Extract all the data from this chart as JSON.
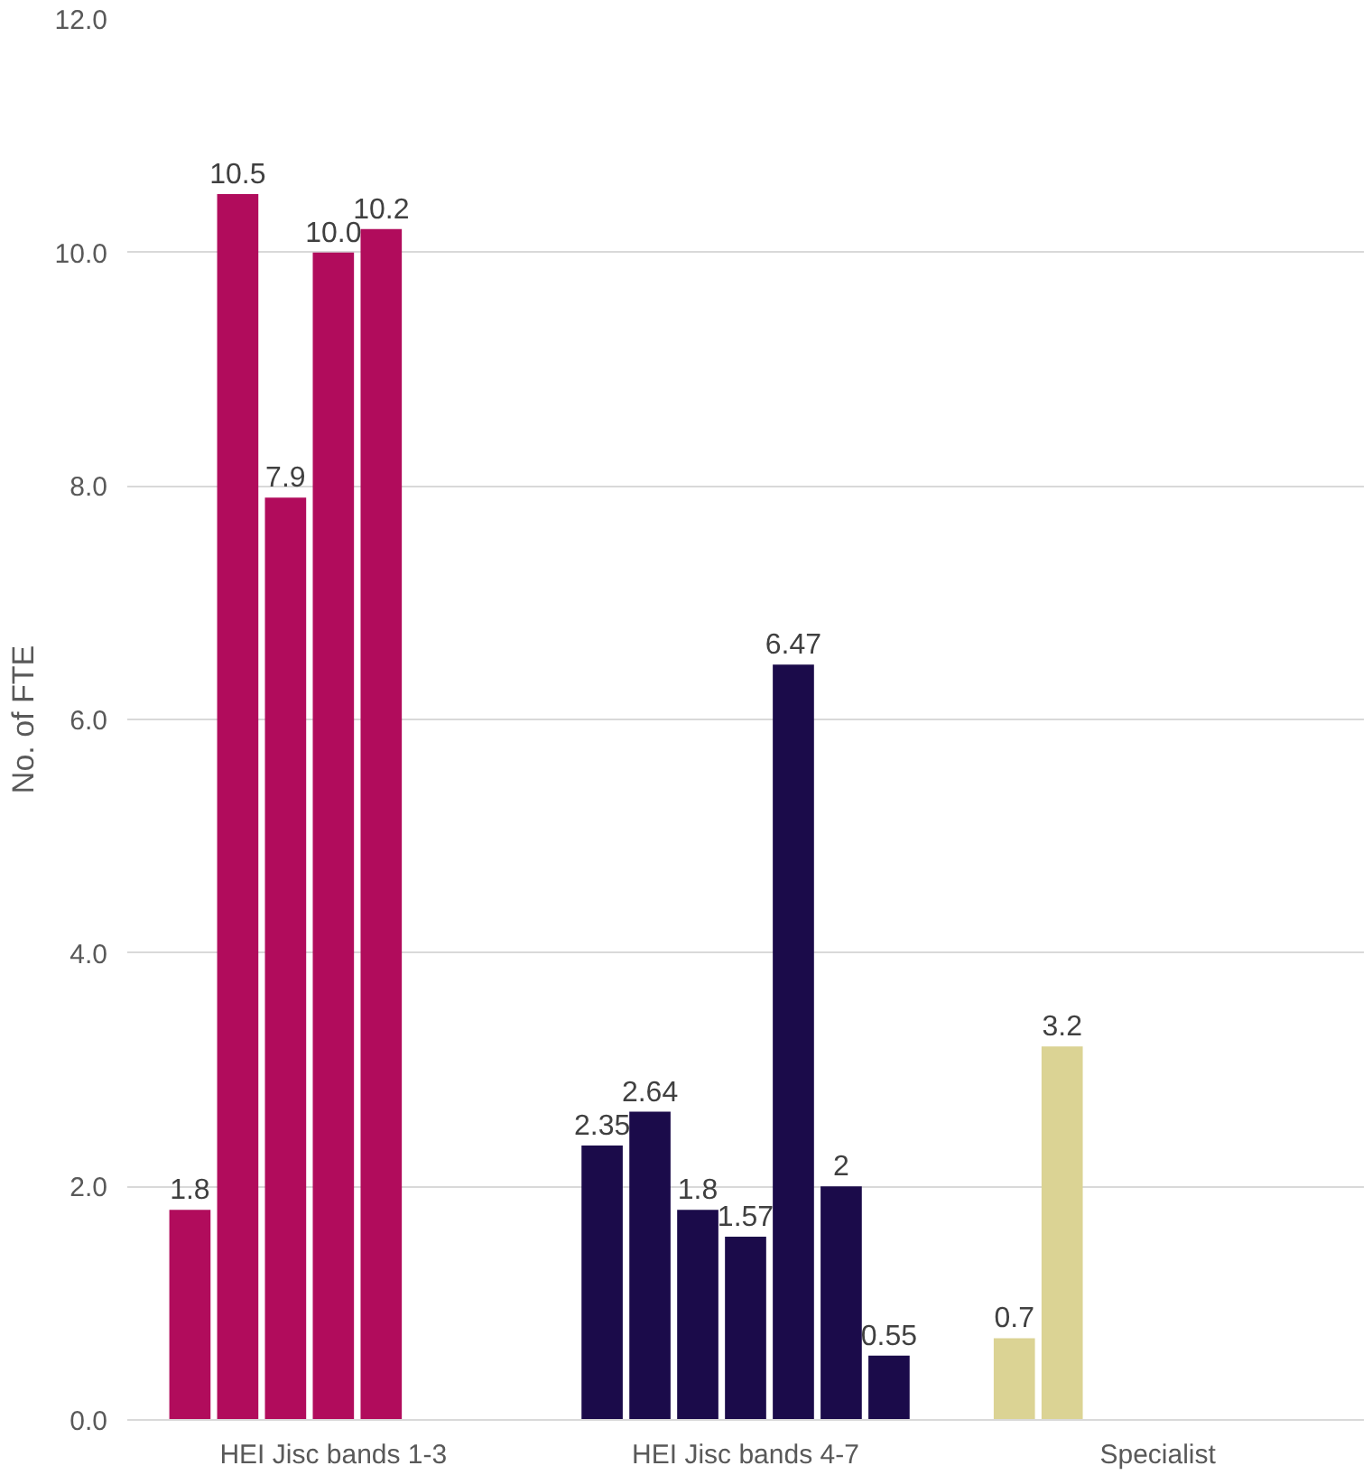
{
  "chart_data": {
    "type": "bar",
    "ylabel": "No. of FTE",
    "categories": [
      "HEI Jisc bands 1-3",
      "HEI Jisc bands 4-7",
      "Specialist"
    ],
    "series": [
      {
        "colors": [
          "#b10c5c",
          "#1b0b4a",
          "#dbd394"
        ],
        "values": [
          1.8,
          2.35,
          0.7
        ],
        "value_labels": [
          "1.8",
          "2.35",
          "0.7"
        ]
      },
      {
        "colors": [
          "#b10c5c",
          "#1b0b4a",
          "#dbd394"
        ],
        "values": [
          10.5,
          2.64,
          3.2
        ],
        "value_labels": [
          "10.5",
          "2.64",
          "3.2"
        ]
      },
      {
        "colors": [
          "#b10c5c",
          "#1b0b4a",
          "#dbd394"
        ],
        "values": [
          7.9,
          1.8,
          null
        ],
        "value_labels": [
          "7.9",
          "1.8",
          null
        ]
      },
      {
        "colors": [
          "#b10c5c",
          "#1b0b4a",
          "#dbd394"
        ],
        "values": [
          10.0,
          1.57,
          null
        ],
        "value_labels": [
          "10.0",
          "1.57",
          null
        ]
      },
      {
        "colors": [
          "#b10c5c",
          "#1b0b4a",
          "#dbd394"
        ],
        "values": [
          10.2,
          6.47,
          null
        ],
        "value_labels": [
          "10.2",
          "6.47",
          null
        ]
      },
      {
        "colors": [
          "#b10c5c",
          "#1b0b4a",
          "#dbd394"
        ],
        "values": [
          null,
          2,
          null
        ],
        "value_labels": [
          null,
          "2",
          null
        ]
      },
      {
        "colors": [
          "#b10c5c",
          "#1b0b4a",
          "#dbd394"
        ],
        "values": [
          null,
          0.55,
          null
        ],
        "value_labels": [
          null,
          "0.55",
          null
        ]
      }
    ],
    "ylim": [
      0,
      12
    ],
    "yticks": [
      {
        "value": 0,
        "label": "0.0"
      },
      {
        "value": 2,
        "label": "2.0"
      },
      {
        "value": 4,
        "label": "4.0"
      },
      {
        "value": 6,
        "label": "6.0"
      },
      {
        "value": 8,
        "label": "8.0"
      },
      {
        "value": 10,
        "label": "10.0"
      },
      {
        "value": 12,
        "label": "12.0"
      }
    ],
    "grid": "y"
  }
}
